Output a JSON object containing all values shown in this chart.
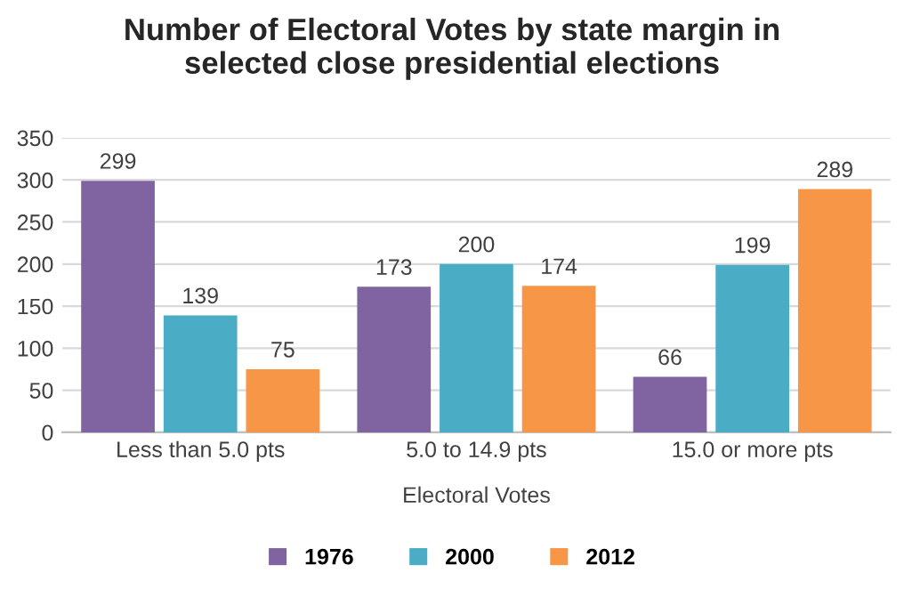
{
  "chart_data": {
    "type": "bar",
    "title": "Number of Electoral Votes by state margin in\nselected close presidential elections",
    "categories": [
      "Less than 5.0 pts",
      "5.0 to 14.9 pts",
      "15.0 or more pts"
    ],
    "xlabel": "Electoral Votes",
    "series": [
      {
        "name": "1976",
        "color": "#8064a2",
        "values": [
          299,
          173,
          66
        ]
      },
      {
        "name": "2000",
        "color": "#4bacc6",
        "values": [
          139,
          200,
          199
        ]
      },
      {
        "name": "2012",
        "color": "#f79646",
        "values": [
          75,
          174,
          289
        ]
      }
    ],
    "ylim": [
      0,
      350
    ],
    "yticks": [
      0,
      50,
      100,
      150,
      200,
      250,
      300,
      350
    ],
    "grid": "y",
    "legend": "bottom",
    "data_labels": true
  }
}
